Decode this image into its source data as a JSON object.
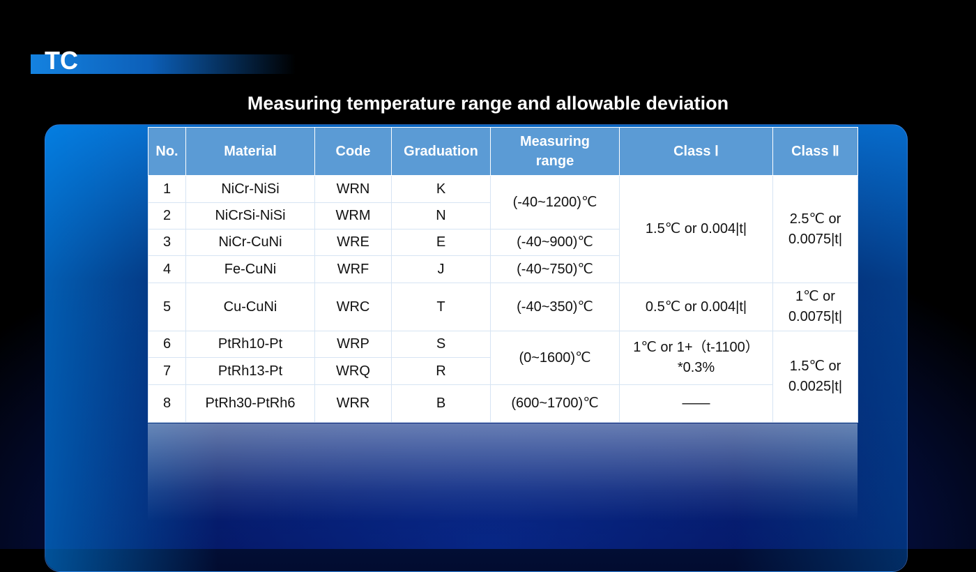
{
  "header": {
    "tag": "TC",
    "title": "Measuring temperature range and allowable deviation"
  },
  "table": {
    "headers": [
      "No.",
      "Material",
      "Code",
      "Graduation",
      "Measuring range",
      "Class Ⅰ",
      "Class Ⅱ"
    ],
    "rows": [
      [
        "1",
        "NiCr-NiSi",
        "WRN",
        "K",
        "(-40~1200)℃",
        "1.5℃ or 0.004|t|",
        "2.5℃ or 0.0075|t|"
      ],
      [
        "2",
        "NiCrSi-NiSi",
        "WRM",
        "N"
      ],
      [
        "3",
        "NiCr-CuNi",
        "WRE",
        "E",
        "(-40~900)℃"
      ],
      [
        "4",
        "Fe-CuNi",
        "WRF",
        "J",
        "(-40~750)℃"
      ],
      [
        "5",
        "Cu-CuNi",
        "WRC",
        "T",
        "(-40~350)℃",
        "0.5℃ or 0.004|t|",
        "1℃ or 0.0075|t|"
      ],
      [
        "6",
        "PtRh10-Pt",
        "WRP",
        "S",
        "(0~1600)℃",
        "1℃ or 1+（t-1100）*0.3%",
        "1.5℃ or 0.0025|t|"
      ],
      [
        "7",
        "PtRh13-Pt",
        "WRQ",
        "R"
      ],
      [
        "8",
        "PtRh30-PtRh6",
        "WRR",
        "B",
        "(600~1700)℃",
        "——"
      ]
    ]
  }
}
